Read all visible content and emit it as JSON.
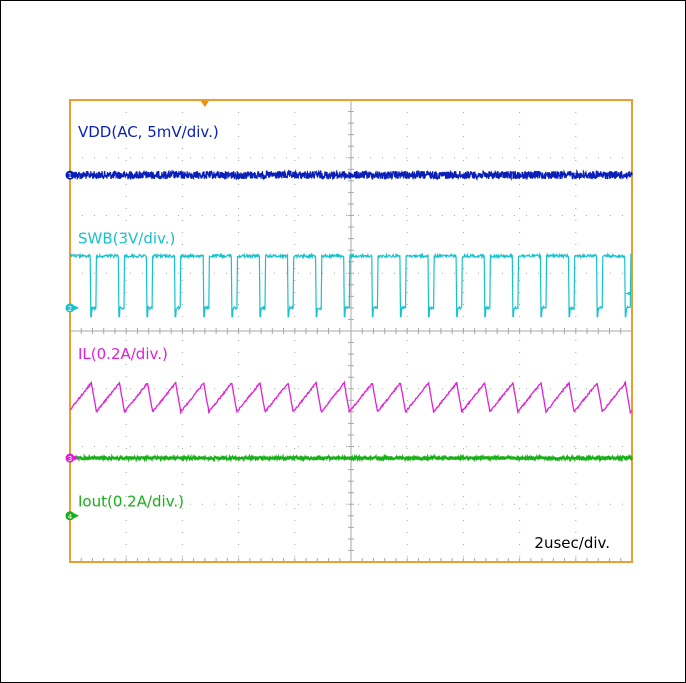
{
  "chart_data": {
    "type": "line",
    "title": "",
    "timebase": "2usec/div.",
    "divisions": {
      "x": 10,
      "y": 8
    },
    "grid": true,
    "frame_color": "#e8a030",
    "grid_color": "#a8a8a8",
    "trigger_marker_color": "#ff8a00",
    "series": [
      {
        "name": "VDD(AC, 5mV/div.)",
        "color": "#0a1fb8",
        "marker": "1",
        "ground_div": 1.3,
        "shape": "noise",
        "noise_div": 0.07,
        "baseline_div": 1.3
      },
      {
        "name": "SWB(3V/div.)",
        "color": "#17c2cf",
        "marker": "2",
        "ground_div": 3.6,
        "shape": "square",
        "period_div": 0.5,
        "duty": 0.82,
        "low_div": 3.6,
        "high_div": 2.7
      },
      {
        "name": "IL(0.2A/div.)",
        "color": "#e020d8",
        "marker": "3",
        "ground_div": 6.2,
        "shape": "sawtooth",
        "period_div": 0.5,
        "rise_fraction": 0.82,
        "min_div": 5.4,
        "max_div": 4.9
      },
      {
        "name": "Iout(0.2A/div.)",
        "color": "#18b018",
        "marker": "4",
        "ground_div": 7.2,
        "shape": "noise",
        "noise_div": 0.03,
        "baseline_div": 6.2
      }
    ]
  }
}
